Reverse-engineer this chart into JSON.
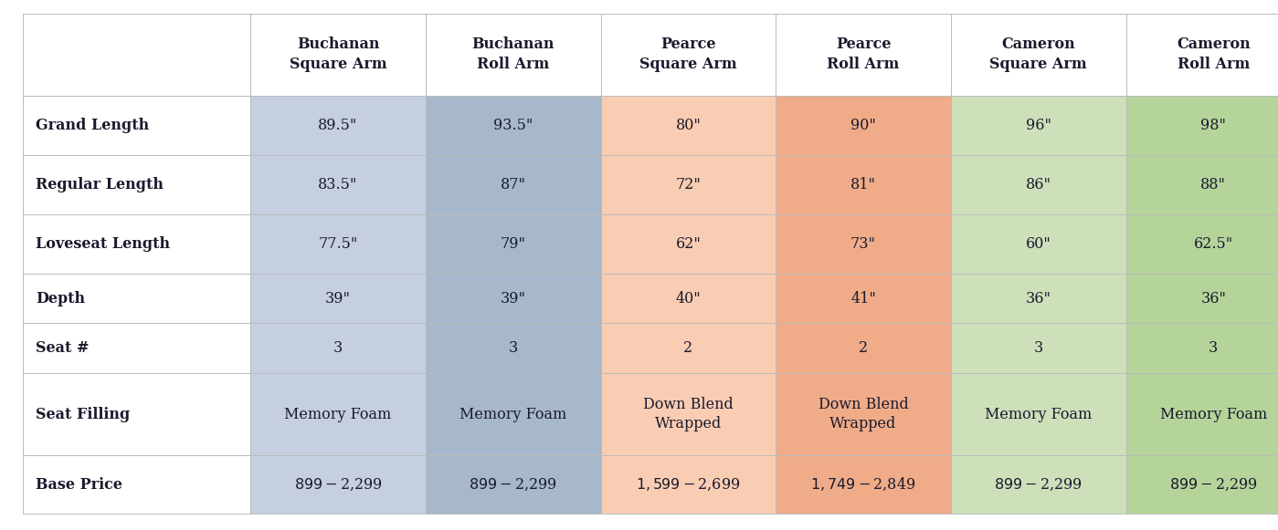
{
  "col_headers": [
    "",
    "Buchanan\nSquare Arm",
    "Buchanan\nRoll Arm",
    "Pearce\nSquare Arm",
    "Pearce\nRoll Arm",
    "Cameron\nSquare Arm",
    "Cameron\nRoll Arm"
  ],
  "row_labels": [
    "Grand Length",
    "Regular Length",
    "Loveseat Length",
    "Depth",
    "Seat #",
    "Seat Filling",
    "Base Price"
  ],
  "cell_data": [
    [
      "89.5\"",
      "93.5\"",
      "80\"",
      "90\"",
      "96\"",
      "98\""
    ],
    [
      "83.5\"",
      "87\"",
      "72\"",
      "81\"",
      "86\"",
      "88\""
    ],
    [
      "77.5\"",
      "79\"",
      "62\"",
      "73\"",
      "60\"",
      "62.5\""
    ],
    [
      "39\"",
      "39\"",
      "40\"",
      "41\"",
      "36\"",
      "36\""
    ],
    [
      "3",
      "3",
      "2",
      "2",
      "3",
      "3"
    ],
    [
      "Memory Foam",
      "Memory Foam",
      "Down Blend\nWrapped",
      "Down Blend\nWrapped",
      "Memory Foam",
      "Memory Foam"
    ],
    [
      "$899-$2,299",
      "$899-$2,299",
      "$1,599-$2,699",
      "$1,749-$2,849",
      "$899-$2,299",
      "$899-$2,299"
    ]
  ],
  "col_bg_colors": [
    "#c5cfe0",
    "#a8b8cc",
    "#f9cdb3",
    "#f0ac88",
    "#cde0ba",
    "#b5d49a"
  ],
  "header_bg": "#ffffff",
  "row_label_bg": "#ffffff",
  "border_color": "#bbbbbb",
  "text_color": "#1a1a2e",
  "header_font_size": 11.5,
  "cell_font_size": 11.5,
  "row_label_font_size": 11.5
}
